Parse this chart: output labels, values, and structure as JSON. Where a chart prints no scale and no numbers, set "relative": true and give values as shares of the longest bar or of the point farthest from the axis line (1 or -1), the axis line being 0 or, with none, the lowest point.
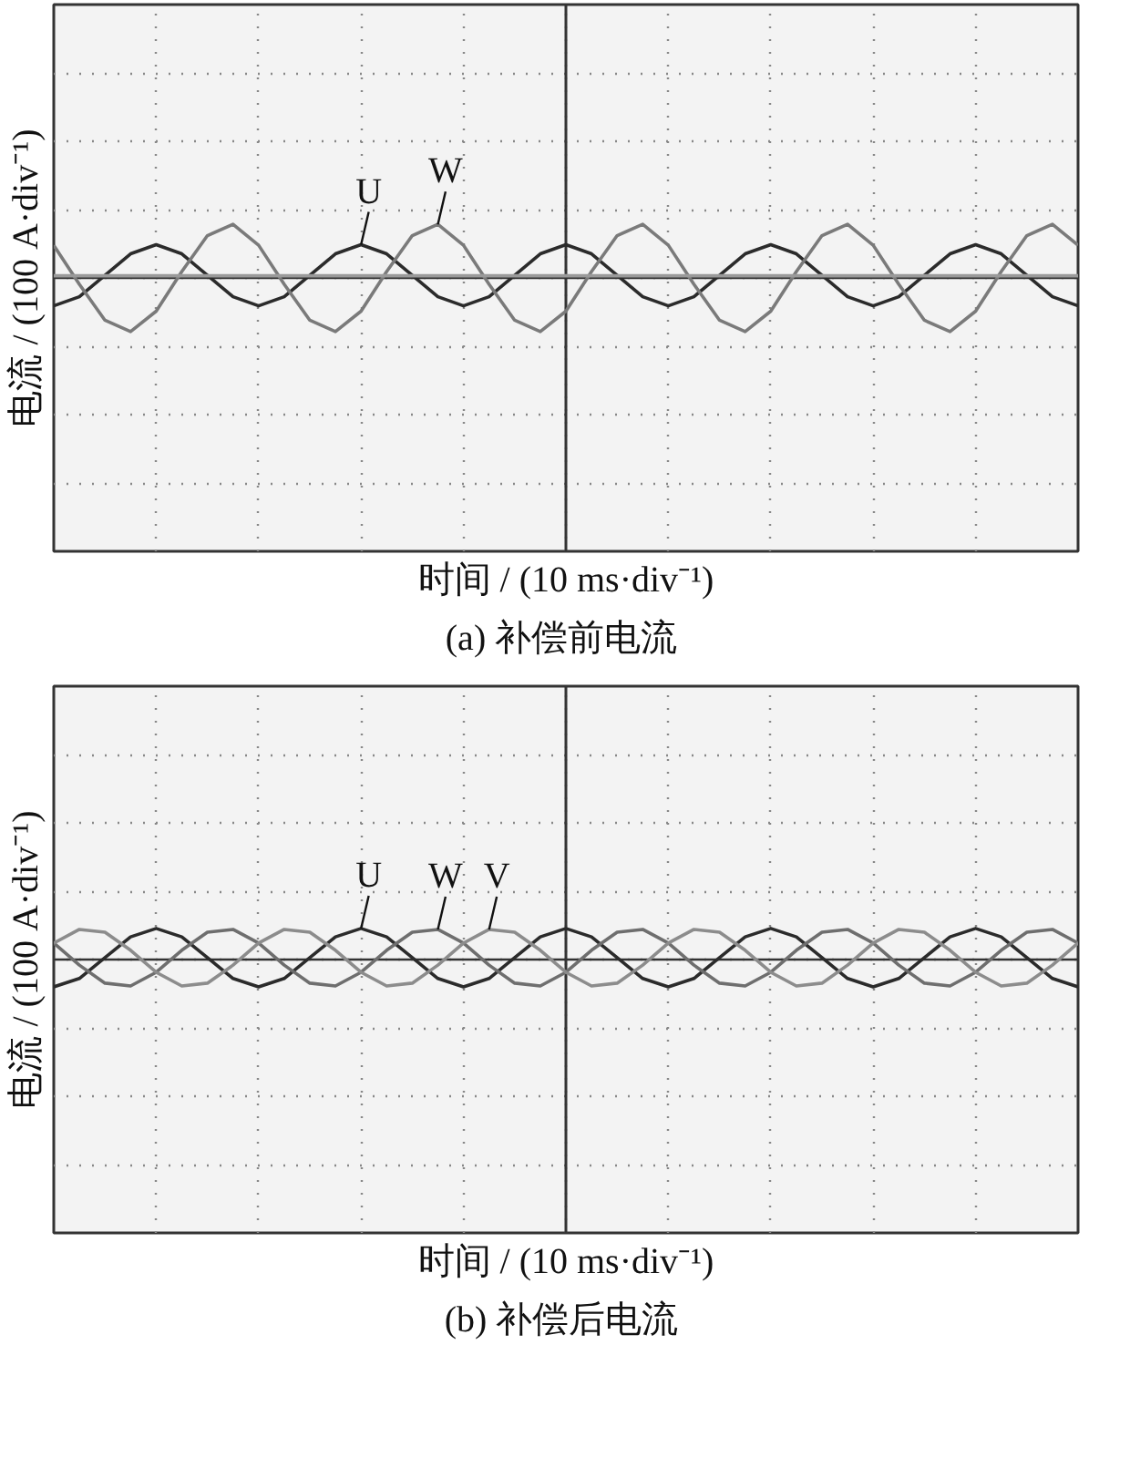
{
  "chart_data": [
    {
      "type": "line",
      "title": "(a)  补偿前电流",
      "xlabel": "时间 / (10 ms·div⁻¹)",
      "ylabel": "电流 / (100 A·div⁻¹)",
      "relative": true,
      "grid": true,
      "categories": [
        null,
        null,
        null,
        null,
        null,
        null,
        null,
        null,
        null,
        null,
        null,
        null,
        null,
        null,
        null,
        null,
        null,
        null,
        null,
        null,
        null,
        null,
        null,
        null,
        null,
        null,
        null,
        null,
        null,
        null,
        null,
        null,
        null,
        null,
        null,
        null,
        null,
        null,
        null,
        null,
        null
      ],
      "series": [
        {
          "name": "U",
          "color": "#2b2b2b",
          "values": [
            -0.52,
            -0.35,
            0.05,
            0.45,
            0.62,
            0.45,
            0.05,
            -0.35,
            -0.52,
            -0.35,
            0.05,
            0.45,
            0.62,
            0.45,
            0.05,
            -0.35,
            -0.52,
            -0.35,
            0.05,
            0.45,
            0.62,
            0.45,
            0.05,
            -0.35,
            -0.52,
            -0.35,
            0.05,
            0.45,
            0.62,
            0.45,
            0.05,
            -0.35,
            -0.52,
            -0.35,
            0.05,
            0.45,
            0.62,
            0.45,
            0.05,
            -0.35,
            -0.52
          ]
        },
        {
          "name": "W",
          "color": "#7a7a7a",
          "values": [
            0.61,
            -0.12,
            -0.79,
            -1,
            -0.62,
            0.12,
            0.79,
            1,
            0.61,
            -0.12,
            -0.79,
            -1,
            -0.62,
            0.12,
            0.79,
            1,
            0.61,
            -0.12,
            -0.79,
            -1,
            -0.62,
            0.12,
            0.79,
            1,
            0.61,
            -0.12,
            -0.79,
            -1,
            -0.62,
            0.12,
            0.79,
            1,
            0.61,
            -0.12,
            -0.79,
            -1,
            -0.62,
            0.12,
            0.79,
            1,
            0.61
          ]
        },
        {
          "color": "#9a9a9a",
          "values": [
            0.04,
            0.04,
            0.04,
            0.04,
            0.04,
            0.04,
            0.04,
            0.04,
            0.04,
            0.04,
            0.04,
            0.04,
            0.04,
            0.04,
            0.04,
            0.04,
            0.04,
            0.04,
            0.04,
            0.04,
            0.04,
            0.04,
            0.04,
            0.04,
            0.04,
            0.04,
            0.04,
            0.04,
            0.04,
            0.04,
            0.04,
            0.04,
            0.04,
            0.04,
            0.04,
            0.04,
            0.04,
            0.04,
            0.04,
            0.04,
            0.04
          ]
        }
      ]
    },
    {
      "type": "line",
      "title": "(b)  补偿后电流",
      "xlabel": "时间 / (10 ms·div⁻¹)",
      "ylabel": "电流 / (100 A·div⁻¹)",
      "relative": true,
      "grid": true,
      "categories": [
        null,
        null,
        null,
        null,
        null,
        null,
        null,
        null,
        null,
        null,
        null,
        null,
        null,
        null,
        null,
        null,
        null,
        null,
        null,
        null,
        null,
        null,
        null,
        null,
        null,
        null,
        null,
        null,
        null,
        null,
        null,
        null,
        null,
        null,
        null,
        null,
        null,
        null,
        null,
        null,
        null
      ],
      "series": [
        {
          "name": "U",
          "color": "#2b2b2b",
          "values": [
            -0.88,
            -0.61,
            0.06,
            0.73,
            1,
            0.73,
            0.06,
            -0.61,
            -0.88,
            -0.61,
            0.06,
            0.73,
            1,
            0.73,
            0.06,
            -0.61,
            -0.88,
            -0.61,
            0.06,
            0.73,
            1,
            0.73,
            0.06,
            -0.61,
            -0.88,
            -0.61,
            0.06,
            0.73,
            1,
            0.73,
            0.06,
            -0.61,
            -0.88,
            -0.61,
            0.06,
            0.73,
            1,
            0.73,
            0.06,
            -0.61,
            -0.88
          ]
        },
        {
          "name": "W",
          "color": "#6e6e6e",
          "values": [
            0.53,
            -0.18,
            -0.76,
            -0.85,
            -0.41,
            0.3,
            0.88,
            0.97,
            0.53,
            -0.18,
            -0.76,
            -0.85,
            -0.41,
            0.3,
            0.88,
            0.97,
            0.53,
            -0.18,
            -0.76,
            -0.85,
            -0.41,
            0.3,
            0.88,
            0.97,
            0.53,
            -0.18,
            -0.76,
            -0.85,
            -0.41,
            0.3,
            0.88,
            0.97,
            0.53,
            -0.18,
            -0.76,
            -0.85,
            -0.41,
            0.3,
            0.88,
            0.97,
            0.53
          ]
        },
        {
          "name": "V",
          "color": "#8c8c8c",
          "values": [
            0.53,
            0.97,
            0.88,
            0.3,
            -0.41,
            -0.85,
            -0.76,
            -0.18,
            0.53,
            0.97,
            0.88,
            0.3,
            -0.41,
            -0.85,
            -0.76,
            -0.18,
            0.53,
            0.97,
            0.88,
            0.3,
            -0.41,
            -0.85,
            -0.76,
            -0.18,
            0.53,
            0.97,
            0.88,
            0.3,
            -0.41,
            -0.85,
            -0.76,
            -0.18,
            0.53,
            0.97,
            0.88,
            0.3,
            -0.41,
            -0.85,
            -0.76,
            -0.18,
            0.53
          ]
        }
      ]
    }
  ]
}
